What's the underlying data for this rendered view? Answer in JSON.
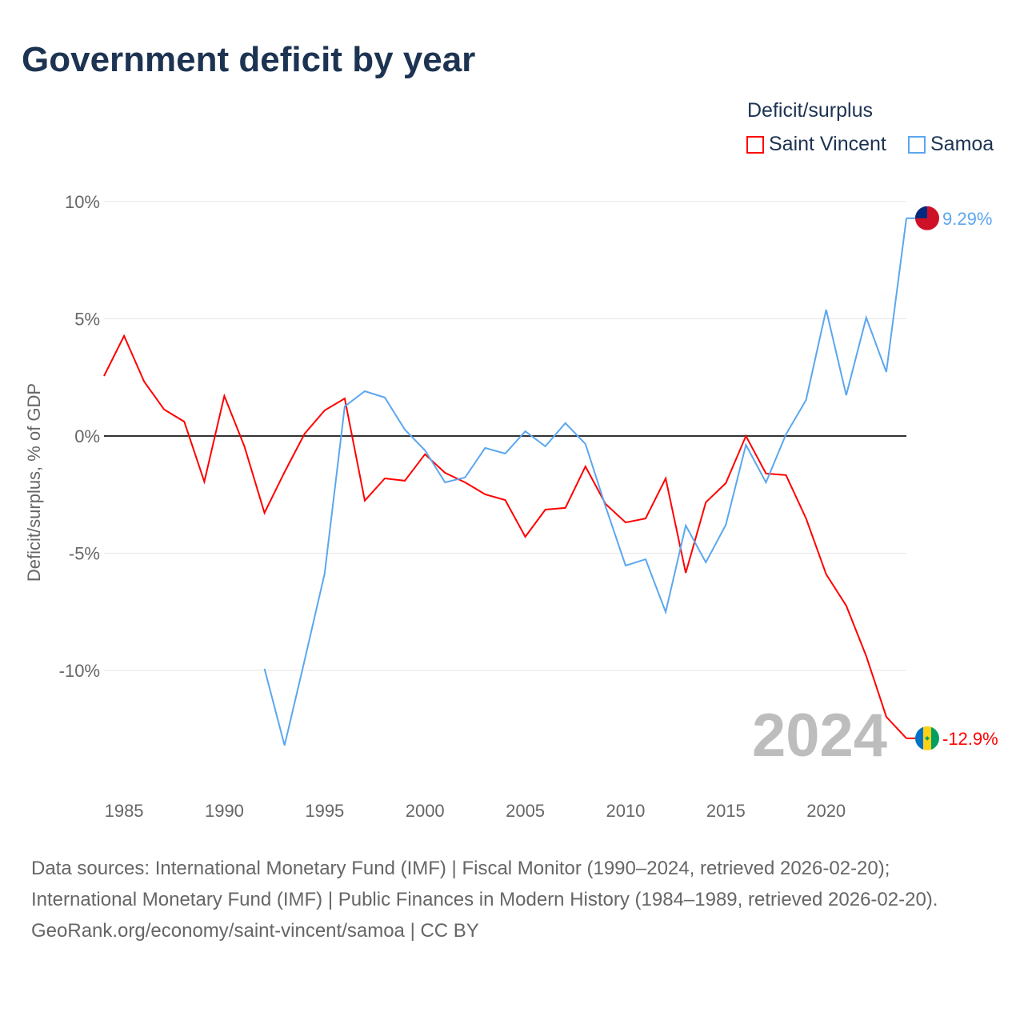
{
  "title": "Government deficit by year",
  "legend": {
    "title": "Deficit/surplus",
    "items": [
      "Saint Vincent",
      "Samoa"
    ]
  },
  "year_label": "2024",
  "footer": {
    "line1": "Data sources: International Monetary Fund (IMF) | Fiscal Monitor (1990–2024, retrieved 2026-02-20); International Monetary Fund (IMF) | Public Finances in Modern History (1984–1989, retrieved 2026-02-20).",
    "line2": "GeoRank.org/economy/saint-vincent/samoa | CC BY"
  },
  "chart_data": {
    "type": "line",
    "title": "Government deficit by year",
    "ylabel": "Deficit/surplus, % of GDP",
    "xlabel": "",
    "xlim": [
      1984,
      2024
    ],
    "ylim": [
      -14.8,
      10.5
    ],
    "x_ticks": [
      1985,
      1990,
      1995,
      2000,
      2005,
      2010,
      2015,
      2020
    ],
    "y_ticks": [
      {
        "v": 10,
        "label": "10%"
      },
      {
        "v": 5,
        "label": "5%"
      },
      {
        "v": 0,
        "label": "0%"
      },
      {
        "v": -5,
        "label": "-5%"
      },
      {
        "v": -10,
        "label": "-10%"
      }
    ],
    "grid": true,
    "legend_position": "top-right",
    "series": [
      {
        "name": "Saint Vincent",
        "color": "#ff0000",
        "end_label": "-12.9%",
        "flag": "saint-vincent-flag",
        "x": [
          1984,
          1985,
          1986,
          1987,
          1988,
          1989,
          1990,
          1991,
          1992,
          1993,
          1994,
          1995,
          1996,
          1997,
          1998,
          1999,
          2000,
          2001,
          2002,
          2003,
          2004,
          2005,
          2006,
          2007,
          2008,
          2009,
          2010,
          2011,
          2012,
          2013,
          2014,
          2015,
          2016,
          2017,
          2018,
          2019,
          2020,
          2021,
          2022,
          2023,
          2024
        ],
        "values": [
          2.56,
          4.27,
          2.32,
          1.13,
          0.61,
          -1.95,
          1.71,
          -0.44,
          -3.28,
          -1.54,
          0.1,
          1.09,
          1.6,
          -2.76,
          -1.81,
          -1.91,
          -0.78,
          -1.57,
          -1.98,
          -2.49,
          -2.73,
          -4.3,
          -3.14,
          -3.07,
          -1.3,
          -2.9,
          -3.69,
          -3.52,
          -1.81,
          -5.84,
          -2.83,
          -2.01,
          0,
          -1.6,
          -1.67,
          -3.52,
          -5.9,
          -7.24,
          -9.39,
          -11.98,
          -12.9
        ]
      },
      {
        "name": "Samoa",
        "color": "#5ba7ef",
        "end_label": "9.29%",
        "flag": "samoa-flag",
        "x": [
          1992,
          1993,
          1994,
          1995,
          1996,
          1997,
          1998,
          1999,
          2000,
          2001,
          2002,
          2003,
          2004,
          2005,
          2006,
          2007,
          2008,
          2009,
          2010,
          2011,
          2012,
          2013,
          2014,
          2015,
          2016,
          2017,
          2018,
          2019,
          2020,
          2021,
          2022,
          2023,
          2024
        ],
        "values": [
          -9.93,
          -13.2,
          -9.56,
          -5.87,
          1.26,
          1.91,
          1.64,
          0.27,
          -0.61,
          -1.98,
          -1.77,
          -0.51,
          -0.75,
          0.2,
          -0.44,
          0.55,
          -0.34,
          -3.0,
          -5.53,
          -5.26,
          -7.51,
          -3.82,
          -5.39,
          -3.79,
          -0.38,
          -1.98,
          0.07,
          1.54,
          5.39,
          1.74,
          5.05,
          2.73,
          9.29
        ]
      }
    ]
  }
}
